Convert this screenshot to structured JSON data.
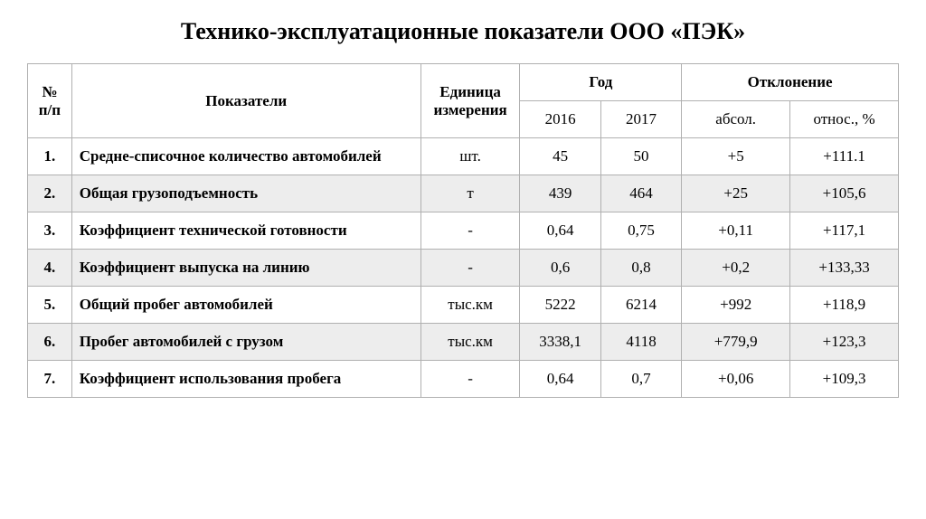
{
  "title": "Технико-эксплуатационные показатели ООО «ПЭК»",
  "table": {
    "headers": {
      "num": "№ п/п",
      "indicator": "Показатели",
      "unit": "Единица измерения",
      "year": "Год",
      "year_2016": "2016",
      "year_2017": "2017",
      "deviation": "Отклонение",
      "dev_abs": "абсол.",
      "dev_rel": "относ., %"
    },
    "rows": [
      {
        "num": "1.",
        "indicator": "Средне-списочное количество автомобилей",
        "unit": "шт.",
        "y2016": "45",
        "y2017": "50",
        "abs": "+5",
        "rel": "+111.1"
      },
      {
        "num": "2.",
        "indicator": "Общая грузоподъемность",
        "unit": "т",
        "y2016": "439",
        "y2017": "464",
        "abs": "+25",
        "rel": "+105,6"
      },
      {
        "num": "3.",
        "indicator": "Коэффициент технической готовности",
        "unit": "-",
        "y2016": "0,64",
        "y2017": "0,75",
        "abs": "+0,11",
        "rel": "+117,1"
      },
      {
        "num": "4.",
        "indicator": "Коэффициент выпуска на линию",
        "unit": "-",
        "y2016": "0,6",
        "y2017": "0,8",
        "abs": "+0,2",
        "rel": "+133,33"
      },
      {
        "num": "5.",
        "indicator": "Общий пробег автомобилей",
        "unit": "тыс.км",
        "y2016": "5222",
        "y2017": "6214",
        "abs": "+992",
        "rel": "+118,9"
      },
      {
        "num": "6.",
        "indicator": "Пробег автомобилей с грузом",
        "unit": "тыс.км",
        "y2016": "3338,1",
        "y2017": "4118",
        "abs": "+779,9",
        "rel": "+123,3"
      },
      {
        "num": "7.",
        "indicator": "Коэффициент использования пробега",
        "unit": "-",
        "y2016": "0,64",
        "y2017": "0,7",
        "abs": "+0,06",
        "rel": "+109,3"
      }
    ]
  },
  "styling": {
    "background_color": "#ffffff",
    "border_color": "#b0b0b0",
    "row_even_bg": "#ededed",
    "row_odd_bg": "#ffffff",
    "text_color": "#000000",
    "title_fontsize": 26,
    "cell_fontsize": 17,
    "font_family": "Times New Roman",
    "column_widths": {
      "num": 48,
      "indicator": 380,
      "unit": 108,
      "year": 88,
      "deviation": 118
    }
  }
}
